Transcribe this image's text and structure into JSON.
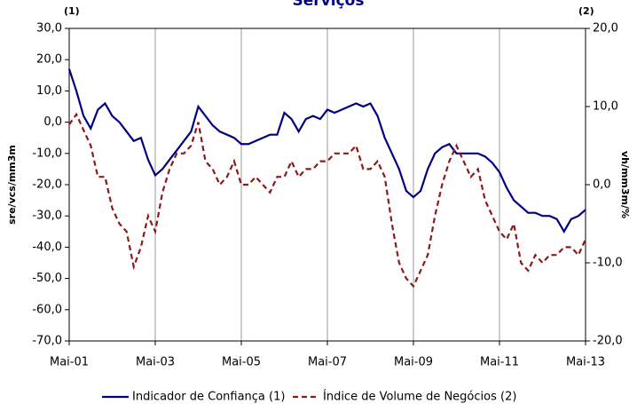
{
  "chart_data": {
    "type": "line",
    "title": "Serviços",
    "left_note": "(1)",
    "right_note": "(2)",
    "ylabel": "sre/vcs/mm3m",
    "y2label": "vh/mm3m/%",
    "categories": [
      "Mai-01",
      null,
      null,
      null,
      null,
      null,
      null,
      null,
      null,
      null,
      null,
      null,
      "Mai-03",
      null,
      null,
      null,
      null,
      null,
      null,
      null,
      null,
      null,
      null,
      null,
      "Mai-05",
      null,
      null,
      null,
      null,
      null,
      null,
      null,
      null,
      null,
      null,
      null,
      "Mai-07",
      null,
      null,
      null,
      null,
      null,
      null,
      null,
      null,
      null,
      null,
      null,
      "Mai-09",
      null,
      null,
      null,
      null,
      null,
      null,
      null,
      null,
      null,
      null,
      null,
      "Mai-11",
      null,
      null,
      null,
      null,
      null,
      null,
      null,
      null,
      null,
      null,
      null,
      "Mai-13"
    ],
    "series": [
      {
        "name": "Indicador de Confiança (1)",
        "color": "#000080",
        "dash": false,
        "values": [
          17,
          10,
          2,
          -2,
          4,
          6,
          2,
          0,
          -3,
          -6,
          -5,
          -12,
          -17,
          -15,
          -12,
          -9,
          -6,
          -3,
          5,
          2,
          -1,
          -3,
          -4,
          -5,
          -7,
          -7,
          -6,
          -5,
          -4,
          -4,
          3,
          1,
          -3,
          1,
          2,
          1,
          4,
          3,
          4,
          5,
          6,
          5,
          6,
          2,
          -5,
          -10,
          -15,
          -22,
          -24,
          -22,
          -15,
          -10,
          -8,
          -7,
          -10,
          -10,
          -10,
          -10,
          -11,
          -13,
          -16,
          -21,
          -25,
          -27,
          -29,
          -29,
          -30,
          -30,
          -31,
          -35,
          -31,
          -30,
          -28
        ]
      },
      {
        "name": "Índice de Volume de Negócios (2)",
        "color": "#8b1a1a",
        "dash": true,
        "axis": "y2",
        "values": [
          7.7,
          9,
          7,
          5,
          1,
          1,
          -3,
          -5,
          -6,
          -10.5,
          -8,
          -4,
          -6,
          -1,
          2,
          4,
          4,
          5,
          8,
          3,
          2,
          0,
          1,
          3,
          0,
          0,
          1,
          0,
          -1,
          1,
          1,
          3,
          1,
          2,
          2,
          3,
          3,
          4,
          4,
          4,
          5,
          2,
          2,
          3,
          1,
          -5,
          -10,
          -12,
          -13,
          -11,
          -9,
          -4,
          0,
          3,
          5,
          3,
          1,
          2,
          -2,
          -4,
          -6,
          -7,
          -5,
          -10,
          -11,
          -9,
          -10,
          -9,
          -9,
          -8,
          -8,
          -9,
          -7
        ]
      }
    ],
    "ylim": [
      -70,
      30
    ],
    "yticks": [
      {
        "value": 30,
        "label": "30,0"
      },
      {
        "value": 20,
        "label": "20,0"
      },
      {
        "value": 10,
        "label": "10,0"
      },
      {
        "value": 0,
        "label": "0,0"
      },
      {
        "value": -10,
        "label": "-10,0"
      },
      {
        "value": -20,
        "label": "-20,0"
      },
      {
        "value": -30,
        "label": "-30,0"
      },
      {
        "value": -40,
        "label": "-40,0"
      },
      {
        "value": -50,
        "label": "-50,0"
      },
      {
        "value": -60,
        "label": "-60,0"
      },
      {
        "value": -70,
        "label": "-70,0"
      }
    ],
    "y2lim": [
      -20,
      20
    ],
    "y2ticks": [
      {
        "value": 20,
        "label": "20,0"
      },
      {
        "value": 10,
        "label": "10,0"
      },
      {
        "value": 0,
        "label": "0,0"
      },
      {
        "value": -10,
        "label": "-10,0"
      },
      {
        "value": -20,
        "label": "-20,0"
      }
    ]
  }
}
